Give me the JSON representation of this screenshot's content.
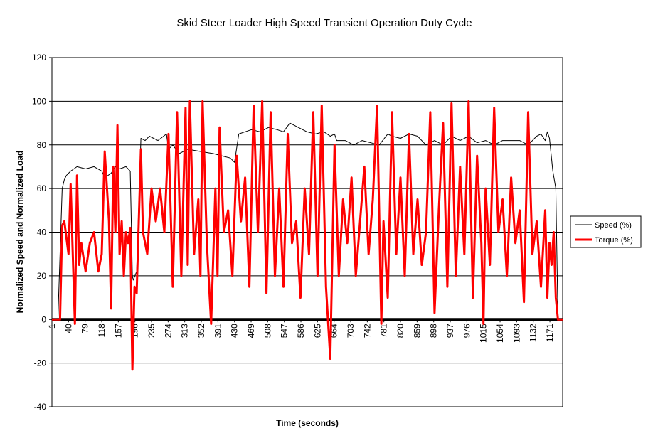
{
  "chart_data": {
    "type": "line",
    "title": "Skid Steer Loader High Speed Transient Operation Duty Cycle",
    "xlabel": "Time (seconds)",
    "ylabel": "Normalized Speed and Normalized Load",
    "ylim": [
      -40,
      120
    ],
    "yticks": [
      "120",
      "100",
      "80",
      "60",
      "40",
      "20",
      "0",
      "-20",
      "-40"
    ],
    "xlim": [
      1,
      1201
    ],
    "xticks": [
      "1",
      "40",
      "79",
      "118",
      "157",
      "196",
      "235",
      "274",
      "313",
      "352",
      "391",
      "430",
      "469",
      "508",
      "547",
      "586",
      "625",
      "664",
      "703",
      "742",
      "781",
      "820",
      "859",
      "898",
      "937",
      "976",
      "1015",
      "1054",
      "1093",
      "1132",
      "1171"
    ],
    "grid": true,
    "legend_position": "right",
    "series": [
      {
        "name": "Speed (%)",
        "color": "#000000",
        "x": [
          1,
          15,
          25,
          30,
          35,
          45,
          60,
          80,
          100,
          118,
          125,
          140,
          150,
          160,
          175,
          185,
          190,
          192,
          200,
          210,
          220,
          230,
          250,
          270,
          275,
          285,
          300,
          320,
          350,
          380,
          400,
          420,
          430,
          440,
          455,
          470,
          490,
          510,
          530,
          545,
          560,
          580,
          600,
          620,
          640,
          655,
          665,
          670,
          690,
          710,
          730,
          750,
          770,
          790,
          800,
          820,
          840,
          860,
          880,
          900,
          920,
          940,
          960,
          980,
          1000,
          1020,
          1040,
          1060,
          1080,
          1100,
          1120,
          1140,
          1150,
          1160,
          1165,
          1170,
          1178,
          1185,
          1190,
          1201
        ],
        "y": [
          0,
          0,
          60,
          64,
          66,
          68,
          70,
          69,
          70,
          68,
          65,
          67,
          70,
          69,
          70,
          68,
          20,
          18,
          22,
          83,
          82,
          84,
          82,
          85,
          78,
          80,
          76,
          78,
          77,
          76,
          75,
          74,
          72,
          85,
          86,
          87,
          86,
          88,
          87,
          86,
          90,
          88,
          86,
          85,
          86,
          84,
          85,
          82,
          82,
          80,
          82,
          81,
          80,
          85,
          84,
          83,
          85,
          84,
          80,
          82,
          80,
          84,
          82,
          84,
          81,
          82,
          80,
          82,
          82,
          82,
          80,
          84,
          85,
          82,
          86,
          83,
          68,
          60,
          0,
          0
        ]
      },
      {
        "name": "Torque (%)",
        "color": "#ff0000",
        "x": [
          1,
          20,
          25,
          30,
          40,
          45,
          55,
          60,
          65,
          70,
          80,
          90,
          100,
          110,
          118,
          125,
          135,
          140,
          145,
          150,
          155,
          160,
          165,
          170,
          175,
          180,
          185,
          190,
          195,
          200,
          210,
          215,
          225,
          235,
          245,
          255,
          265,
          275,
          285,
          295,
          305,
          315,
          320,
          325,
          335,
          345,
          350,
          355,
          365,
          375,
          385,
          390,
          395,
          405,
          415,
          425,
          435,
          445,
          455,
          465,
          475,
          485,
          495,
          505,
          515,
          525,
          535,
          545,
          555,
          565,
          575,
          585,
          595,
          605,
          615,
          625,
          635,
          645,
          655,
          665,
          675,
          685,
          695,
          705,
          715,
          725,
          735,
          745,
          755,
          765,
          775,
          780,
          790,
          800,
          810,
          820,
          830,
          840,
          850,
          860,
          870,
          880,
          890,
          900,
          910,
          920,
          930,
          940,
          950,
          960,
          970,
          980,
          990,
          1000,
          1010,
          1015,
          1020,
          1030,
          1040,
          1050,
          1060,
          1070,
          1080,
          1090,
          1100,
          1110,
          1120,
          1130,
          1140,
          1150,
          1160,
          1165,
          1170,
          1175,
          1180,
          1185,
          1190,
          1201
        ],
        "y": [
          0,
          0,
          43,
          45,
          30,
          62,
          -2,
          66,
          25,
          35,
          22,
          35,
          40,
          22,
          30,
          77,
          45,
          5,
          70,
          40,
          89,
          30,
          45,
          20,
          40,
          35,
          42,
          -23,
          15,
          12,
          78,
          40,
          30,
          60,
          45,
          60,
          40,
          85,
          15,
          95,
          20,
          97,
          25,
          100,
          30,
          55,
          20,
          100,
          35,
          -2,
          60,
          20,
          88,
          40,
          50,
          20,
          75,
          45,
          65,
          15,
          98,
          40,
          100,
          12,
          95,
          20,
          60,
          15,
          85,
          35,
          45,
          10,
          60,
          30,
          95,
          20,
          98,
          15,
          -18,
          80,
          20,
          55,
          35,
          65,
          20,
          45,
          70,
          30,
          55,
          98,
          -2,
          45,
          10,
          95,
          30,
          65,
          20,
          85,
          30,
          55,
          25,
          40,
          95,
          3,
          50,
          90,
          15,
          99,
          20,
          70,
          30,
          100,
          10,
          75,
          35,
          -2,
          60,
          25,
          97,
          40,
          55,
          20,
          65,
          35,
          50,
          8,
          95,
          30,
          45,
          15,
          50,
          10,
          35,
          25,
          40,
          10,
          0,
          0
        ]
      }
    ]
  }
}
